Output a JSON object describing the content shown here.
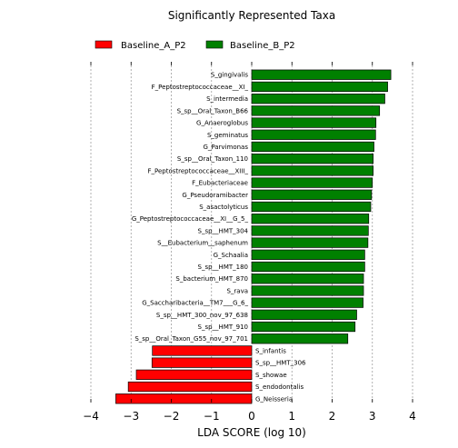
{
  "chart_data": {
    "type": "bar",
    "orientation": "horizontal",
    "title": "Significantly Represented Taxa",
    "xlabel": "LDA SCORE (log 10)",
    "xlim": [
      -4,
      4
    ],
    "xticks": [
      "−4",
      "−3",
      "−2",
      "−1",
      "0",
      "1",
      "2",
      "3",
      "4"
    ],
    "xtick_values": [
      -4,
      -3,
      -2,
      -1,
      0,
      1,
      2,
      3,
      4
    ],
    "grid": "vertical dotted",
    "legend_position": "top-left",
    "series": [
      {
        "name": "Baseline_A_P2",
        "color": "#ff0000"
      },
      {
        "name": "Baseline_B_P2",
        "color": "#008000"
      }
    ],
    "bars": [
      {
        "label": "S_gingivalis",
        "value": 3.46,
        "group": "Baseline_B_P2"
      },
      {
        "label": "F_Peptostreptococcaceae__XI_",
        "value": 3.38,
        "group": "Baseline_B_P2"
      },
      {
        "label": "S_intermedia",
        "value": 3.31,
        "group": "Baseline_B_P2"
      },
      {
        "label": "S_sp__Oral_Taxon_B66",
        "value": 3.18,
        "group": "Baseline_B_P2"
      },
      {
        "label": "G_Anaeroglobus",
        "value": 3.09,
        "group": "Baseline_B_P2"
      },
      {
        "label": "S_geminatus",
        "value": 3.08,
        "group": "Baseline_B_P2"
      },
      {
        "label": "G_Parvimonas",
        "value": 3.04,
        "group": "Baseline_B_P2"
      },
      {
        "label": "S_sp__Oral_Taxon_110",
        "value": 3.02,
        "group": "Baseline_B_P2"
      },
      {
        "label": "F_Peptostreptococcaceae__XIII_",
        "value": 3.02,
        "group": "Baseline_B_P2"
      },
      {
        "label": "F_Eubacteriaceae",
        "value": 3.0,
        "group": "Baseline_B_P2"
      },
      {
        "label": "G_Pseudoramibacter",
        "value": 2.98,
        "group": "Baseline_B_P2"
      },
      {
        "label": "S_asactolyticus",
        "value": 2.96,
        "group": "Baseline_B_P2"
      },
      {
        "label": "G_Peptostreptococcaceae__XI__G_5_",
        "value": 2.91,
        "group": "Baseline_B_P2"
      },
      {
        "label": "S_sp__HMT_304",
        "value": 2.9,
        "group": "Baseline_B_P2"
      },
      {
        "label": "S__Eubacterium__saphenum",
        "value": 2.89,
        "group": "Baseline_B_P2"
      },
      {
        "label": "G_Schaalia",
        "value": 2.81,
        "group": "Baseline_B_P2"
      },
      {
        "label": "S_sp__HMT_180",
        "value": 2.81,
        "group": "Baseline_B_P2"
      },
      {
        "label": "S_bacterium_HMT_870",
        "value": 2.78,
        "group": "Baseline_B_P2"
      },
      {
        "label": "S_rava",
        "value": 2.78,
        "group": "Baseline_B_P2"
      },
      {
        "label": "G_Saccharibacteria__TM7___G_6_",
        "value": 2.77,
        "group": "Baseline_B_P2"
      },
      {
        "label": "S_sp__HMT_300_nov_97_638",
        "value": 2.61,
        "group": "Baseline_B_P2"
      },
      {
        "label": "S_sp__HMT_910",
        "value": 2.57,
        "group": "Baseline_B_P2"
      },
      {
        "label": "S_sp__Oral_Taxon_G55_nov_97_701",
        "value": 2.39,
        "group": "Baseline_B_P2"
      },
      {
        "label": "S_infantis",
        "value": -2.47,
        "group": "Baseline_A_P2"
      },
      {
        "label": "S_sp__HMT_306",
        "value": -2.48,
        "group": "Baseline_A_P2"
      },
      {
        "label": "S_showae",
        "value": -2.87,
        "group": "Baseline_A_P2"
      },
      {
        "label": "S_endodontalis",
        "value": -3.07,
        "group": "Baseline_A_P2"
      },
      {
        "label": "G_Neisseria",
        "value": -3.38,
        "group": "Baseline_A_P2"
      }
    ]
  }
}
